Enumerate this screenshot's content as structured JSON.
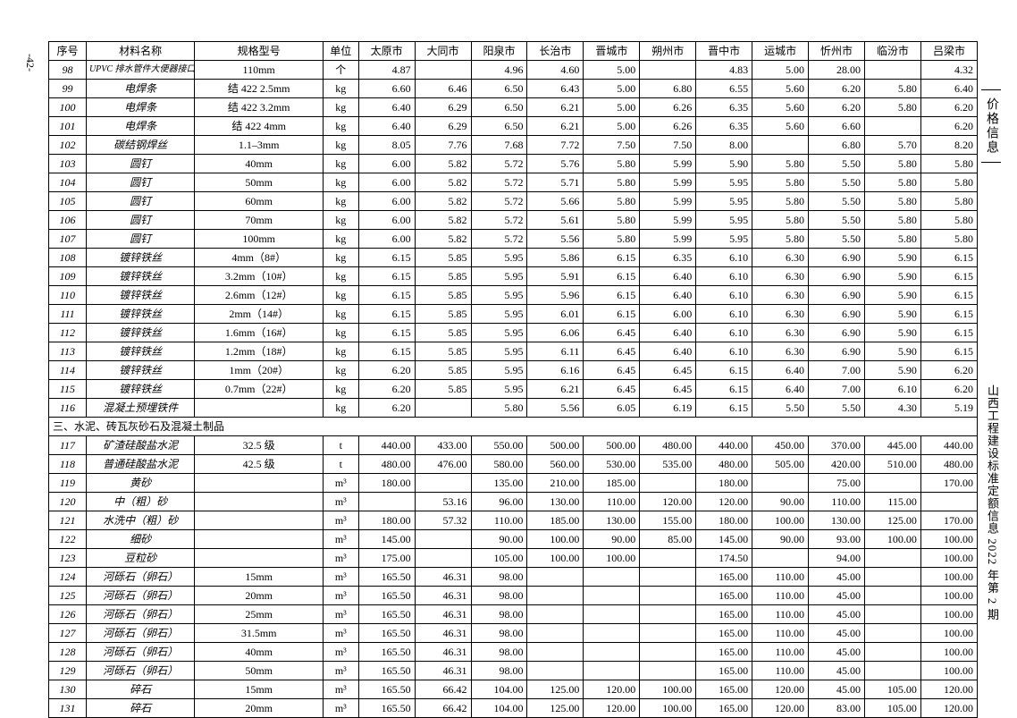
{
  "page": {
    "left_number": "-42-",
    "side_top": "价格信息",
    "side_bottom": "山西工程建设标准定额信息 2022 年第 2 期"
  },
  "headers": [
    "序号",
    "材料名称",
    "规格型号",
    "单位",
    "太原市",
    "大同市",
    "阳泉市",
    "长治市",
    "晋城市",
    "朔州市",
    "晋中市",
    "运城市",
    "忻州市",
    "临汾市",
    "吕梁市"
  ],
  "section_label": "三、水泥、砖瓦灰砂石及混凝土制品",
  "rows": [
    {
      "n": "98",
      "name": "UPVC 排水管件大便器接口",
      "name_class": "upvc",
      "spec": "110mm",
      "unit": "个",
      "v": [
        "4.87",
        "",
        "4.96",
        "4.60",
        "5.00",
        "",
        "4.83",
        "5.00",
        "28.00",
        "",
        "4.32"
      ]
    },
    {
      "n": "99",
      "name": "电焊条",
      "spec": "结 422    2.5mm",
      "unit": "kg",
      "v": [
        "6.60",
        "6.46",
        "6.50",
        "6.43",
        "5.00",
        "6.80",
        "6.55",
        "5.60",
        "6.20",
        "5.80",
        "6.40"
      ]
    },
    {
      "n": "100",
      "name": "电焊条",
      "spec": "结 422    3.2mm",
      "unit": "kg",
      "v": [
        "6.40",
        "6.29",
        "6.50",
        "6.21",
        "5.00",
        "6.26",
        "6.35",
        "5.60",
        "6.20",
        "5.80",
        "6.20"
      ]
    },
    {
      "n": "101",
      "name": "电焊条",
      "spec": "结 422    4mm",
      "unit": "kg",
      "v": [
        "6.40",
        "6.29",
        "6.50",
        "6.21",
        "5.00",
        "6.26",
        "6.35",
        "5.60",
        "6.60",
        "",
        "6.20"
      ]
    },
    {
      "n": "102",
      "name": "碳结钢焊丝",
      "spec": "1.1–3mm",
      "unit": "kg",
      "v": [
        "8.05",
        "7.76",
        "7.68",
        "7.72",
        "7.50",
        "7.50",
        "8.00",
        "",
        "6.80",
        "5.70",
        "8.20"
      ]
    },
    {
      "n": "103",
      "name": "圆钉",
      "spec": "40mm",
      "unit": "kg",
      "v": [
        "6.00",
        "5.82",
        "5.72",
        "5.76",
        "5.80",
        "5.99",
        "5.90",
        "5.80",
        "5.50",
        "5.80",
        "5.80"
      ]
    },
    {
      "n": "104",
      "name": "圆钉",
      "spec": "50mm",
      "unit": "kg",
      "v": [
        "6.00",
        "5.82",
        "5.72",
        "5.71",
        "5.80",
        "5.99",
        "5.95",
        "5.80",
        "5.50",
        "5.80",
        "5.80"
      ]
    },
    {
      "n": "105",
      "name": "圆钉",
      "spec": "60mm",
      "unit": "kg",
      "v": [
        "6.00",
        "5.82",
        "5.72",
        "5.66",
        "5.80",
        "5.99",
        "5.95",
        "5.80",
        "5.50",
        "5.80",
        "5.80"
      ]
    },
    {
      "n": "106",
      "name": "圆钉",
      "spec": "70mm",
      "unit": "kg",
      "v": [
        "6.00",
        "5.82",
        "5.72",
        "5.61",
        "5.80",
        "5.99",
        "5.95",
        "5.80",
        "5.50",
        "5.80",
        "5.80"
      ]
    },
    {
      "n": "107",
      "name": "圆钉",
      "spec": "100mm",
      "unit": "kg",
      "v": [
        "6.00",
        "5.82",
        "5.72",
        "5.56",
        "5.80",
        "5.99",
        "5.95",
        "5.80",
        "5.50",
        "5.80",
        "5.80"
      ]
    },
    {
      "n": "108",
      "name": "镀锌铁丝",
      "spec": "4mm（8#）",
      "unit": "kg",
      "v": [
        "6.15",
        "5.85",
        "5.95",
        "5.86",
        "6.15",
        "6.35",
        "6.10",
        "6.30",
        "6.90",
        "5.90",
        "6.15"
      ]
    },
    {
      "n": "109",
      "name": "镀锌铁丝",
      "spec": "3.2mm（10#）",
      "unit": "kg",
      "v": [
        "6.15",
        "5.85",
        "5.95",
        "5.91",
        "6.15",
        "6.40",
        "6.10",
        "6.30",
        "6.90",
        "5.90",
        "6.15"
      ]
    },
    {
      "n": "110",
      "name": "镀锌铁丝",
      "spec": "2.6mm（12#）",
      "unit": "kg",
      "v": [
        "6.15",
        "5.85",
        "5.95",
        "5.96",
        "6.15",
        "6.40",
        "6.10",
        "6.30",
        "6.90",
        "5.90",
        "6.15"
      ]
    },
    {
      "n": "111",
      "name": "镀锌铁丝",
      "spec": "2mm（14#）",
      "unit": "kg",
      "v": [
        "6.15",
        "5.85",
        "5.95",
        "6.01",
        "6.15",
        "6.00",
        "6.10",
        "6.30",
        "6.90",
        "5.90",
        "6.15"
      ]
    },
    {
      "n": "112",
      "name": "镀锌铁丝",
      "spec": "1.6mm（16#）",
      "unit": "kg",
      "v": [
        "6.15",
        "5.85",
        "5.95",
        "6.06",
        "6.45",
        "6.40",
        "6.10",
        "6.30",
        "6.90",
        "5.90",
        "6.15"
      ]
    },
    {
      "n": "113",
      "name": "镀锌铁丝",
      "spec": "1.2mm（18#）",
      "unit": "kg",
      "v": [
        "6.15",
        "5.85",
        "5.95",
        "6.11",
        "6.45",
        "6.40",
        "6.10",
        "6.30",
        "6.90",
        "5.90",
        "6.15"
      ]
    },
    {
      "n": "114",
      "name": "镀锌铁丝",
      "spec": "1mm（20#）",
      "unit": "kg",
      "v": [
        "6.20",
        "5.85",
        "5.95",
        "6.16",
        "6.45",
        "6.45",
        "6.15",
        "6.40",
        "7.00",
        "5.90",
        "6.20"
      ]
    },
    {
      "n": "115",
      "name": "镀锌铁丝",
      "spec": "0.7mm（22#）",
      "unit": "kg",
      "v": [
        "6.20",
        "5.85",
        "5.95",
        "6.21",
        "6.45",
        "6.45",
        "6.15",
        "6.40",
        "7.00",
        "6.10",
        "6.20"
      ]
    },
    {
      "n": "116",
      "name": "混凝土预埋铁件",
      "spec": "",
      "unit": "kg",
      "v": [
        "6.20",
        "",
        "5.80",
        "5.56",
        "6.05",
        "6.19",
        "6.15",
        "5.50",
        "5.50",
        "4.30",
        "5.19"
      ]
    },
    {
      "section": true
    },
    {
      "n": "117",
      "name": "矿渣硅酸盐水泥",
      "spec": "32.5 级",
      "unit": "t",
      "v": [
        "440.00",
        "433.00",
        "550.00",
        "500.00",
        "500.00",
        "480.00",
        "440.00",
        "450.00",
        "370.00",
        "445.00",
        "440.00"
      ]
    },
    {
      "n": "118",
      "name": "普通硅酸盐水泥",
      "spec": "42.5 级",
      "unit": "t",
      "v": [
        "480.00",
        "476.00",
        "580.00",
        "560.00",
        "530.00",
        "535.00",
        "480.00",
        "505.00",
        "420.00",
        "510.00",
        "480.00"
      ]
    },
    {
      "n": "119",
      "name": "黄砂",
      "spec": "",
      "unit": "m³",
      "v": [
        "180.00",
        "",
        "135.00",
        "210.00",
        "185.00",
        "",
        "180.00",
        "",
        "75.00",
        "",
        "170.00"
      ]
    },
    {
      "n": "120",
      "name": "中（粗）砂",
      "spec": "",
      "unit": "m³",
      "v": [
        "",
        "53.16",
        "96.00",
        "130.00",
        "110.00",
        "120.00",
        "120.00",
        "90.00",
        "110.00",
        "115.00",
        ""
      ]
    },
    {
      "n": "121",
      "name": "水洗中（粗）砂",
      "spec": "",
      "unit": "m³",
      "v": [
        "180.00",
        "57.32",
        "110.00",
        "185.00",
        "130.00",
        "155.00",
        "180.00",
        "100.00",
        "130.00",
        "125.00",
        "170.00"
      ]
    },
    {
      "n": "122",
      "name": "细砂",
      "spec": "",
      "unit": "m³",
      "v": [
        "145.00",
        "",
        "90.00",
        "100.00",
        "90.00",
        "85.00",
        "145.00",
        "90.00",
        "93.00",
        "100.00",
        "100.00"
      ]
    },
    {
      "n": "123",
      "name": "豆粒砂",
      "spec": "",
      "unit": "m³",
      "v": [
        "175.00",
        "",
        "105.00",
        "100.00",
        "100.00",
        "",
        "174.50",
        "",
        "94.00",
        "",
        "100.00"
      ]
    },
    {
      "n": "124",
      "name": "河砾石（卵石）",
      "spec": "15mm",
      "unit": "m³",
      "v": [
        "165.50",
        "46.31",
        "98.00",
        "",
        "",
        "",
        "165.00",
        "110.00",
        "45.00",
        "",
        "100.00"
      ]
    },
    {
      "n": "125",
      "name": "河砾石（卵石）",
      "spec": "20mm",
      "unit": "m³",
      "v": [
        "165.50",
        "46.31",
        "98.00",
        "",
        "",
        "",
        "165.00",
        "110.00",
        "45.00",
        "",
        "100.00"
      ]
    },
    {
      "n": "126",
      "name": "河砾石（卵石）",
      "spec": "25mm",
      "unit": "m³",
      "v": [
        "165.50",
        "46.31",
        "98.00",
        "",
        "",
        "",
        "165.00",
        "110.00",
        "45.00",
        "",
        "100.00"
      ]
    },
    {
      "n": "127",
      "name": "河砾石（卵石）",
      "spec": "31.5mm",
      "unit": "m³",
      "v": [
        "165.50",
        "46.31",
        "98.00",
        "",
        "",
        "",
        "165.00",
        "110.00",
        "45.00",
        "",
        "100.00"
      ]
    },
    {
      "n": "128",
      "name": "河砾石（卵石）",
      "spec": "40mm",
      "unit": "m³",
      "v": [
        "165.50",
        "46.31",
        "98.00",
        "",
        "",
        "",
        "165.00",
        "110.00",
        "45.00",
        "",
        "100.00"
      ]
    },
    {
      "n": "129",
      "name": "河砾石（卵石）",
      "spec": "50mm",
      "unit": "m³",
      "v": [
        "165.50",
        "46.31",
        "98.00",
        "",
        "",
        "",
        "165.00",
        "110.00",
        "45.00",
        "",
        "100.00"
      ]
    },
    {
      "n": "130",
      "name": "碎石",
      "spec": "15mm",
      "unit": "m³",
      "v": [
        "165.50",
        "66.42",
        "104.00",
        "125.00",
        "120.00",
        "100.00",
        "165.00",
        "120.00",
        "45.00",
        "105.00",
        "120.00"
      ]
    },
    {
      "n": "131",
      "name": "碎石",
      "spec": "20mm",
      "unit": "m³",
      "v": [
        "165.50",
        "66.42",
        "104.00",
        "125.00",
        "120.00",
        "100.00",
        "165.00",
        "120.00",
        "83.00",
        "105.00",
        "120.00"
      ]
    }
  ]
}
